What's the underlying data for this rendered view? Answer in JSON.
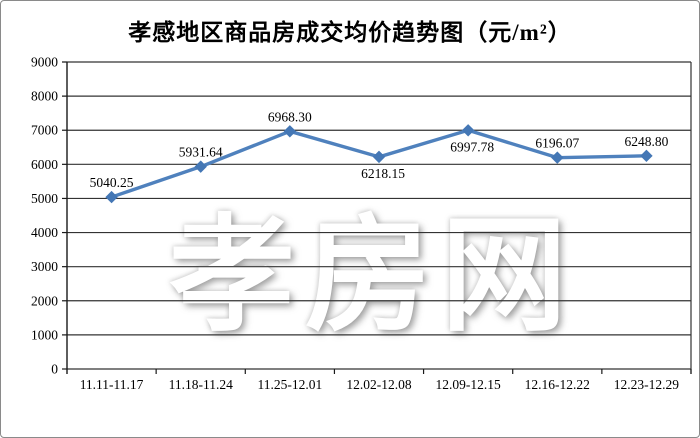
{
  "page": {
    "background": "#ffffff",
    "border_color": "#8a8a8a"
  },
  "title": "孝感地区商品房成交均价趋势图（元/m²）",
  "watermark_text": "孝房网",
  "chart_data": {
    "type": "line",
    "title": "孝感地区商品房成交均价趋势图（元/m²）",
    "categories": [
      "11.11-11.17",
      "11.18-11.24",
      "11.25-12.01",
      "12.02-12.08",
      "12.09-12.15",
      "12.16-12.22",
      "12.23-12.29"
    ],
    "values": [
      5040.25,
      5931.64,
      6968.3,
      6218.15,
      6997.78,
      6196.07,
      6248.8
    ],
    "data_labels": [
      "5040.25",
      "5931.64",
      "6968.30",
      "6218.15",
      "6997.78",
      "6196.07",
      "6248.80"
    ],
    "label_positions": [
      "above",
      "above",
      "above",
      "below",
      "below",
      "above",
      "above"
    ],
    "xlabel": "",
    "ylabel": "",
    "ylim": [
      0,
      9000
    ],
    "yticks": [
      0,
      1000,
      2000,
      3000,
      4000,
      5000,
      6000,
      7000,
      8000,
      9000
    ],
    "grid": "horizontal",
    "legend": "none",
    "marker": "diamond",
    "colors": {
      "line": "#4F81BD",
      "marker": "#4477B5",
      "gridline": "#333333",
      "axis": "#1a1a1a",
      "text": "#000000",
      "watermark": "#ffffff"
    }
  }
}
